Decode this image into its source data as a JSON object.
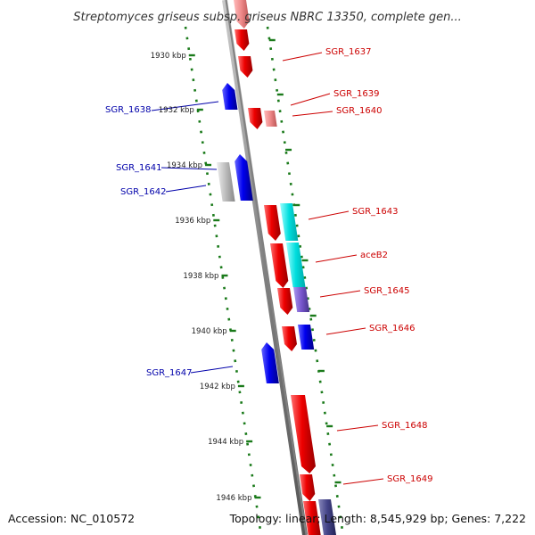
{
  "title": "Streptomyces griseus subsp. griseus NBRC 13350, complete gen...",
  "footer": {
    "accession": "Accession: NC_010572",
    "summary": "Topology: linear; Length: 8,545,929 bp; Genes: 7,222"
  },
  "colors": {
    "forward_label": "#cc0000",
    "reverse_label": "#0000aa",
    "backbone": "#808080",
    "tick": "#1a7a1a",
    "gene_red": "#ee0000",
    "gene_light_red": "#ee8888",
    "gene_blue": "#0000ee",
    "gene_cyan": "#00dddd",
    "gene_purple": "#7755cc",
    "gene_gray": "#bbbbbb"
  },
  "ticks": [
    "1930 kbp",
    "1932 kbp",
    "1934 kbp",
    "1936 kbp",
    "1938 kbp",
    "1940 kbp",
    "1942 kbp",
    "1944 kbp",
    "1946 kbp"
  ],
  "genes": [
    {
      "name": "SGR_1637",
      "strand": "+",
      "color": "gene_red"
    },
    {
      "name": "SGR_1638",
      "strand": "-",
      "color": "gene_blue"
    },
    {
      "name": "SGR_1639",
      "strand": "+",
      "color": "gene_red"
    },
    {
      "name": "SGR_1640",
      "strand": "+",
      "color": "gene_light_red"
    },
    {
      "name": "SGR_1641",
      "strand": "-",
      "color": "gene_gray"
    },
    {
      "name": "SGR_1642",
      "strand": "-",
      "color": "gene_blue"
    },
    {
      "name": "SGR_1643",
      "strand": "+",
      "color": "gene_cyan"
    },
    {
      "name": "aceB2",
      "strand": "+",
      "color": "gene_cyan"
    },
    {
      "name": "SGR_1645",
      "strand": "+",
      "color": "gene_purple"
    },
    {
      "name": "SGR_1646",
      "strand": "+",
      "color": "gene_blue"
    },
    {
      "name": "SGR_1647",
      "strand": "-",
      "color": "gene_blue"
    },
    {
      "name": "SGR_1648",
      "strand": "+",
      "color": "gene_red"
    },
    {
      "name": "SGR_1649",
      "strand": "+",
      "color": "gene_red"
    }
  ]
}
